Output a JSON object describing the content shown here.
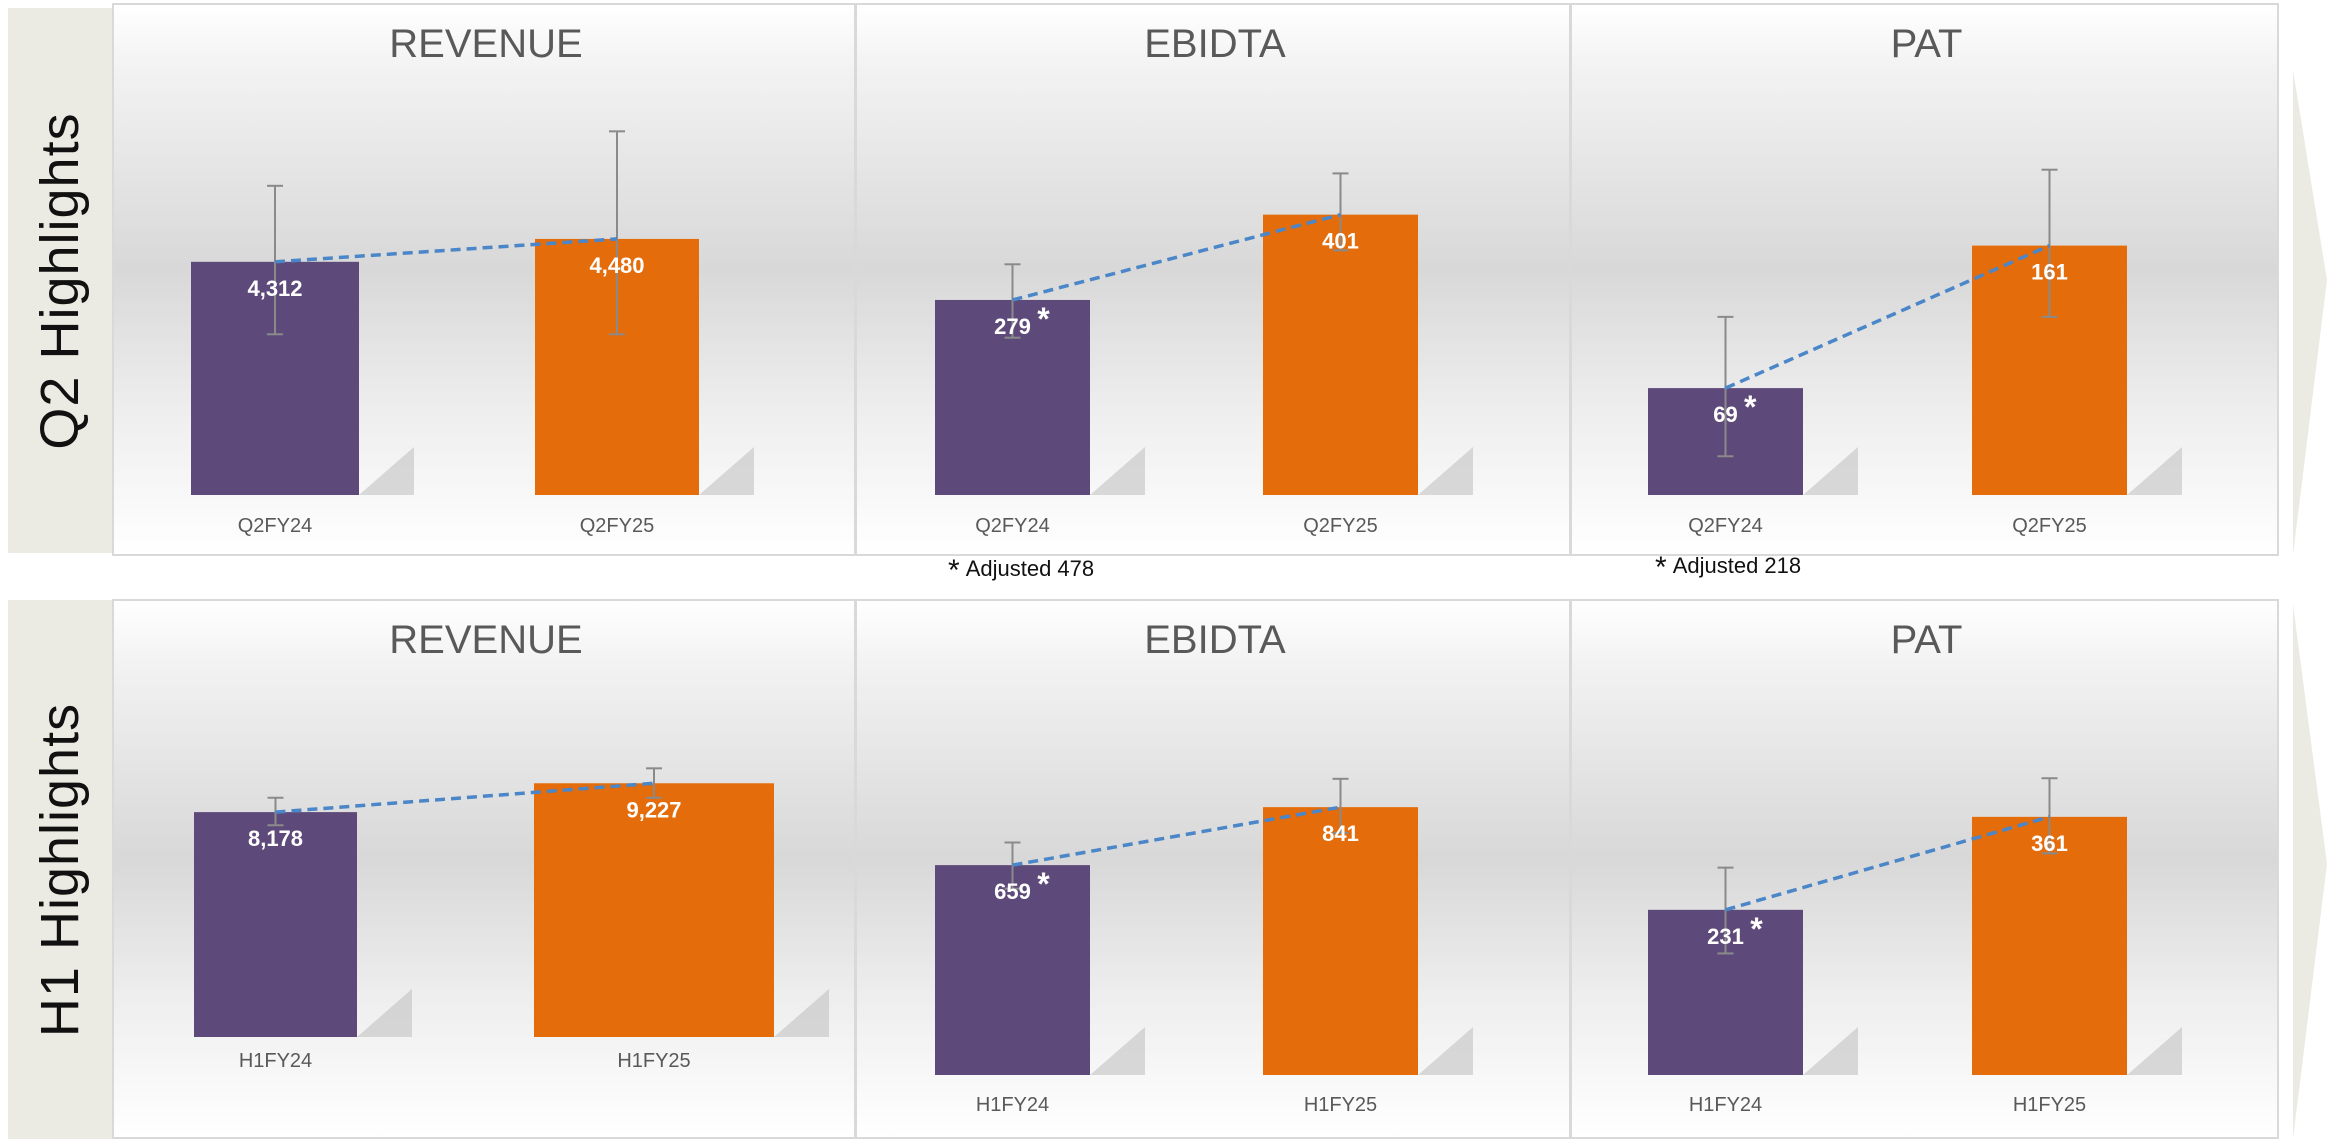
{
  "rows": [
    {
      "label": "Q2 Highlights"
    },
    {
      "label": "H1 Highlights"
    }
  ],
  "footnotes": [
    {
      "star": "*",
      "text": "Adjusted 478"
    },
    {
      "star": "*",
      "text": "Adjusted 218"
    }
  ],
  "colors": {
    "prev": "#5e4a7a",
    "curr": "#e46c0a",
    "trend": "#4a86c8",
    "text": "#595959"
  },
  "chart_data": [
    {
      "type": "bar",
      "title": "REVENUE",
      "categories": [
        "Q2FY24",
        "Q2FY25"
      ],
      "values": [
        4312,
        4480
      ],
      "labels": [
        "4,312",
        "4,480"
      ],
      "star": [
        false,
        false
      ],
      "error_bars": [
        [
          3780,
          4870
        ],
        [
          3780,
          5270
        ]
      ],
      "ylim": [
        2600,
        5500
      ],
      "trend_line": true
    },
    {
      "type": "bar",
      "title": "EBIDTA",
      "categories": [
        "Q2FY24",
        "Q2FY25"
      ],
      "values": [
        279,
        401
      ],
      "labels": [
        "279",
        "401"
      ],
      "star": [
        true,
        false
      ],
      "error_bars": [
        [
          225,
          330
        ],
        [
          350,
          460
        ]
      ],
      "ylim": [
        0,
        565
      ],
      "trend_line": true
    },
    {
      "type": "bar",
      "title": "PAT",
      "categories": [
        "Q2FY24",
        "Q2FY25"
      ],
      "values": [
        69,
        161
      ],
      "labels": [
        "69",
        "161"
      ],
      "star": [
        true,
        false
      ],
      "error_bars": [
        [
          25,
          115
        ],
        [
          115,
          210
        ]
      ],
      "ylim": [
        0,
        255
      ],
      "trend_line": true
    },
    {
      "type": "bar",
      "title": "REVENUE",
      "categories": [
        "H1FY24",
        "H1FY25"
      ],
      "values": [
        8178,
        9227
      ],
      "labels": [
        "8,178",
        "9,227"
      ],
      "star": [
        false,
        false
      ],
      "error_bars": [
        [
          7700,
          8700
        ],
        [
          8700,
          9770
        ]
      ],
      "ylim": [
        0,
        12400
      ],
      "trend_line": true
    },
    {
      "type": "bar",
      "title": "EBIDTA",
      "categories": [
        "H1FY24",
        "H1FY25"
      ],
      "values": [
        659,
        841
      ],
      "labels": [
        "659",
        "841"
      ],
      "star": [
        true,
        false
      ],
      "error_bars": [
        [
          585,
          730
        ],
        [
          760,
          930
        ]
      ],
      "ylim": [
        0,
        1190
      ],
      "trend_line": true
    },
    {
      "type": "bar",
      "title": "PAT",
      "categories": [
        "H1FY24",
        "H1FY25"
      ],
      "values": [
        231,
        361
      ],
      "labels": [
        "231",
        "361"
      ],
      "star": [
        true,
        false
      ],
      "error_bars": [
        [
          170,
          290
        ],
        [
          310,
          415
        ]
      ],
      "ylim": [
        0,
        530
      ],
      "trend_line": true
    }
  ]
}
